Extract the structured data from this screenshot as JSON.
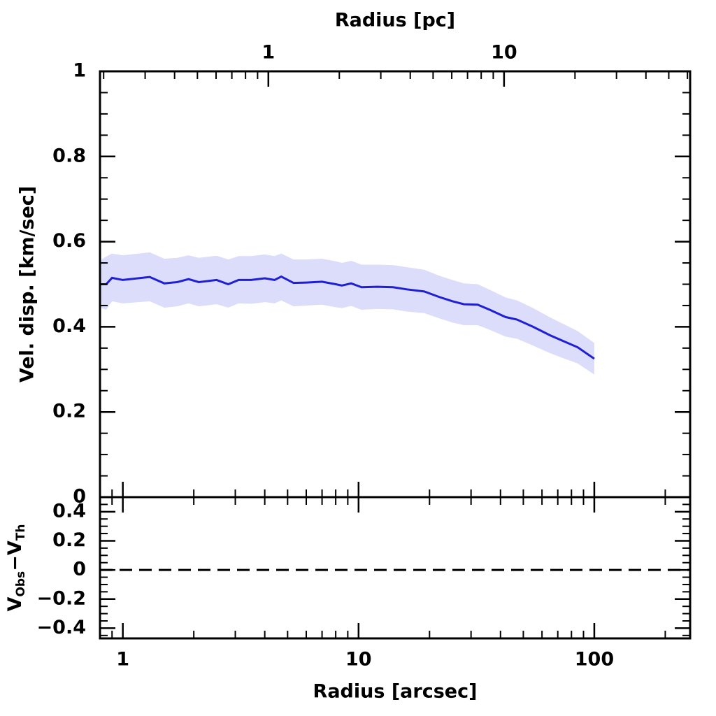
{
  "chart_data": [
    {
      "type": "line",
      "x2label": "Radius [pc]",
      "ylabel": "Vel. disp. [km/sec]",
      "log_x": true,
      "xlim": [
        0.8,
        255
      ],
      "x2lim": [
        0.193,
        61.6
      ],
      "x2ticks": [
        1,
        10
      ],
      "x2minorticks": [
        0.2,
        0.3,
        0.4,
        0.5,
        0.6,
        0.7,
        0.8,
        0.9,
        2,
        3,
        4,
        5,
        6,
        7,
        8,
        9,
        20,
        30,
        40,
        50,
        60
      ],
      "ylim": [
        0,
        1
      ],
      "yticks": [
        0,
        0.2,
        0.4,
        0.6,
        0.8,
        1
      ],
      "yminorticks": [
        0.05,
        0.1,
        0.15,
        0.25,
        0.3,
        0.35,
        0.45,
        0.5,
        0.55,
        0.65,
        0.7,
        0.75,
        0.85,
        0.9,
        0.95
      ],
      "x": [
        0.8,
        0.85,
        0.9,
        1.0,
        1.3,
        1.5,
        1.7,
        1.9,
        2.1,
        2.5,
        2.8,
        3.1,
        3.5,
        4.0,
        4.4,
        4.7,
        5.3,
        6.0,
        7.0,
        8.0,
        8.5,
        9.3,
        10.3,
        12,
        14,
        16,
        19,
        22,
        25,
        28,
        32,
        36,
        42,
        47,
        55,
        65,
        75,
        85,
        100
      ],
      "series": [
        {
          "color": "#1f1fd6",
          "values": [
            0.5,
            0.5,
            0.515,
            0.51,
            0.517,
            0.502,
            0.505,
            0.512,
            0.505,
            0.51,
            0.5,
            0.51,
            0.51,
            0.514,
            0.51,
            0.518,
            0.503,
            0.504,
            0.506,
            0.5,
            0.497,
            0.502,
            0.493,
            0.494,
            0.493,
            0.488,
            0.483,
            0.47,
            0.46,
            0.453,
            0.452,
            0.44,
            0.423,
            0.417,
            0.4,
            0.38,
            0.365,
            0.352,
            0.325
          ]
        }
      ],
      "band": {
        "color": "#dcdcfb",
        "upper": [
          0.555,
          0.565,
          0.572,
          0.568,
          0.575,
          0.56,
          0.562,
          0.568,
          0.562,
          0.567,
          0.558,
          0.566,
          0.566,
          0.57,
          0.566,
          0.572,
          0.558,
          0.558,
          0.56,
          0.554,
          0.55,
          0.555,
          0.546,
          0.546,
          0.545,
          0.54,
          0.534,
          0.52,
          0.51,
          0.502,
          0.5,
          0.487,
          0.469,
          0.462,
          0.444,
          0.422,
          0.405,
          0.39,
          0.362
        ],
        "lower": [
          0.445,
          0.44,
          0.46,
          0.455,
          0.46,
          0.445,
          0.448,
          0.455,
          0.448,
          0.453,
          0.445,
          0.455,
          0.454,
          0.458,
          0.455,
          0.462,
          0.448,
          0.45,
          0.452,
          0.446,
          0.444,
          0.449,
          0.44,
          0.442,
          0.441,
          0.436,
          0.432,
          0.42,
          0.41,
          0.404,
          0.404,
          0.393,
          0.377,
          0.372,
          0.356,
          0.338,
          0.325,
          0.314,
          0.288
        ]
      }
    },
    {
      "type": "residual",
      "xlabel": "Radius [arcsec]",
      "ylabel": [
        "V",
        "Obs",
        "−V",
        "Th"
      ],
      "log_x": true,
      "xlim": [
        0.8,
        255
      ],
      "xticks": [
        1,
        10,
        100
      ],
      "xminorticks": [
        0.8,
        0.9,
        2,
        3,
        4,
        5,
        6,
        7,
        8,
        9,
        20,
        30,
        40,
        50,
        60,
        70,
        80,
        90,
        200
      ],
      "ylim": [
        -0.47,
        0.5
      ],
      "yticks": [
        {
          "value": -0.4,
          "label": "−0.4"
        },
        {
          "value": -0.2,
          "label": "−0.2"
        },
        0,
        0.2,
        0.4
      ],
      "yminorticks": [
        -0.45,
        -0.35,
        -0.3,
        -0.25,
        -0.15,
        -0.1,
        -0.05,
        0.05,
        0.1,
        0.15,
        0.25,
        0.3,
        0.35,
        0.45
      ],
      "hlines": [
        {
          "value": 0,
          "color": "#000000",
          "style": "dashed"
        }
      ]
    }
  ]
}
